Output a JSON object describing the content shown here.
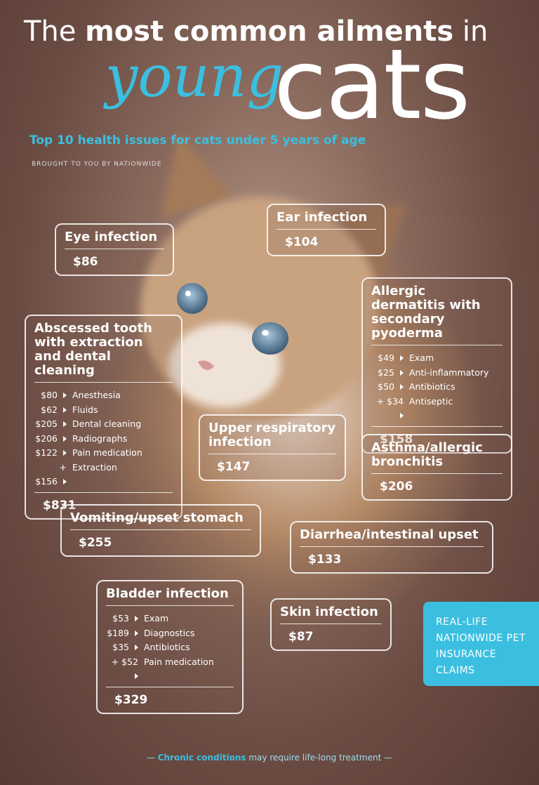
{
  "header": {
    "title_prefix": "The",
    "title_bold": "most common ailments",
    "title_suffix": "in",
    "script_word": "young",
    "big_word": "cats",
    "subtitle": "Top 10 health issues for cats under 5 years of age",
    "sponsor": "BROUGHT TO YOU BY NATIONWIDE"
  },
  "cards": [
    {
      "name": "Eye infection",
      "items": [],
      "total": "$86"
    },
    {
      "name": "Ear infection",
      "items": [],
      "total": "$104"
    },
    {
      "name": "Allergic dermatitis with secondary pyoderma",
      "items": [
        {
          "cost": "$49",
          "label": "Exam"
        },
        {
          "cost": "$25",
          "label": "Anti-inflammatory"
        },
        {
          "cost": "$50",
          "label": "Antibiotics"
        },
        {
          "cost": "+ $34",
          "label": "Antiseptic"
        }
      ],
      "total": "$158"
    },
    {
      "name": "Abscessed tooth with extraction and dental cleaning",
      "items": [
        {
          "cost": "$80",
          "label": "Anesthesia"
        },
        {
          "cost": "$62",
          "label": "Fluids"
        },
        {
          "cost": "$205",
          "label": "Dental cleaning"
        },
        {
          "cost": "$206",
          "label": "Radiographs"
        },
        {
          "cost": "$122",
          "label": "Pain medication"
        },
        {
          "cost": "+ $156",
          "label": "Extraction"
        }
      ],
      "total": "$831"
    },
    {
      "name": "Upper respiratory infection",
      "items": [],
      "total": "$147"
    },
    {
      "name": "Asthma/allergic bronchitis",
      "items": [],
      "total": "$206"
    },
    {
      "name": "Vomiting/upset stomach",
      "items": [],
      "total": "$255"
    },
    {
      "name": "Diarrhea/intestinal upset",
      "items": [],
      "total": "$133"
    },
    {
      "name": "Bladder infection",
      "items": [
        {
          "cost": "$53",
          "label": "Exam"
        },
        {
          "cost": "$189",
          "label": "Diagnostics"
        },
        {
          "cost": "$35",
          "label": "Antibiotics"
        },
        {
          "cost": "+ $52",
          "label": "Pain medication"
        }
      ],
      "total": "$329"
    },
    {
      "name": "Skin infection",
      "items": [],
      "total": "$87"
    }
  ],
  "badge": "REAL-LIFE NATIONWIDE PET INSURANCE CLAIMS",
  "footer": {
    "bold": "Chronic conditions",
    "rest": "may require life-long treatment"
  }
}
